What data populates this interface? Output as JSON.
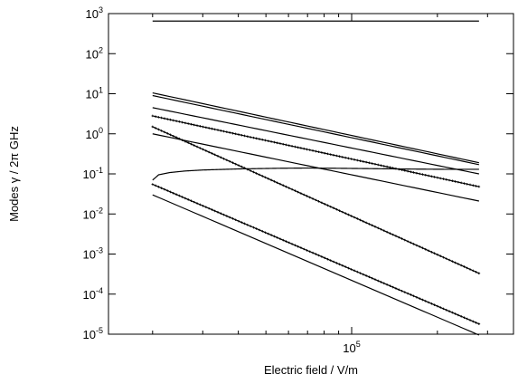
{
  "chart_data": {
    "type": "line",
    "xlabel": "Electric field  /  V/m",
    "ylabel": "Modes γ  /  2π GHz",
    "x_scale": "log",
    "y_scale": "log",
    "xlim": [
      14000,
      370000
    ],
    "ylim": [
      1e-05,
      1000
    ],
    "grid": false,
    "x_ticks": [
      {
        "value": 100000,
        "base": "10",
        "exp": "5"
      }
    ],
    "y_ticks": [
      {
        "value": 1000,
        "base": "10",
        "exp": "3"
      },
      {
        "value": 100,
        "base": "10",
        "exp": "2"
      },
      {
        "value": 10,
        "base": "10",
        "exp": "1"
      },
      {
        "value": 1,
        "base": "10",
        "exp": "0"
      },
      {
        "value": 0.1,
        "base": "10",
        "exp": "-1"
      },
      {
        "value": 0.01,
        "base": "10",
        "exp": "-2"
      },
      {
        "value": 0.001,
        "base": "10",
        "exp": "-3"
      },
      {
        "value": 0.0001,
        "base": "10",
        "exp": "-4"
      },
      {
        "value": 1e-05,
        "base": "10",
        "exp": "-5"
      }
    ],
    "series": [
      {
        "style": "solid",
        "x": [
          20000,
          280000
        ],
        "y": [
          650,
          650
        ]
      },
      {
        "style": "solid",
        "x": [
          20000,
          280000
        ],
        "y": [
          10.5,
          0.19
        ]
      },
      {
        "style": "solid",
        "x": [
          20000,
          280000
        ],
        "y": [
          9.0,
          0.17
        ]
      },
      {
        "style": "solid",
        "x": [
          20000,
          280000
        ],
        "y": [
          4.5,
          0.1
        ]
      },
      {
        "style": "dotted",
        "x": [
          20000,
          280000
        ],
        "y": [
          2.8,
          0.048
        ]
      },
      {
        "style": "solid",
        "x": [
          20000,
          280000
        ],
        "y": [
          1.0,
          0.021
        ]
      },
      {
        "style": "dotted",
        "x": [
          20000,
          280000
        ],
        "y": [
          1.5,
          0.00033
        ]
      },
      {
        "style": "solid",
        "x": [
          20000,
          21000,
          23000,
          26000,
          30000,
          40000,
          55000,
          70000,
          90000,
          120000,
          160000,
          220000,
          280000
        ],
        "y": [
          0.07,
          0.095,
          0.108,
          0.118,
          0.125,
          0.133,
          0.138,
          0.14,
          0.138,
          0.135,
          0.132,
          0.13,
          0.13
        ]
      },
      {
        "style": "dotted",
        "x": [
          20000,
          280000
        ],
        "y": [
          0.055,
          1.8e-05
        ]
      },
      {
        "style": "solid",
        "x": [
          20000,
          280000
        ],
        "y": [
          0.03,
          9.5e-06
        ]
      }
    ]
  }
}
